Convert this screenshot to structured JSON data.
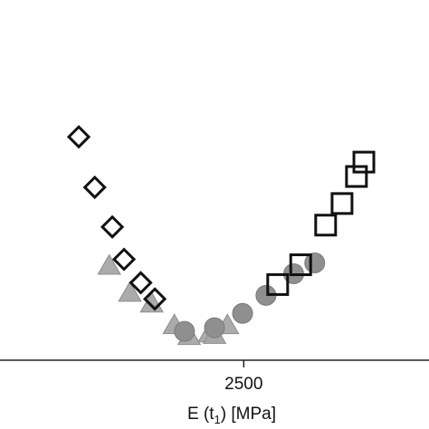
{
  "chart_data": {
    "type": "scatter",
    "xlabel_parts": {
      "main": "E (t",
      "sub": "1",
      "tail": ") [MPa]"
    },
    "x_ticks": [
      2500
    ],
    "xlim": [
      1875,
      2975
    ],
    "ylim": [
      0,
      1
    ],
    "grid": false,
    "colors": {
      "axis": "#222222",
      "open_stroke": "#111111",
      "triangle_fill": "#a6a6a6",
      "triangle_stroke": "#8c8c8c",
      "circle_fill": "#8f8f8f",
      "circle_stroke": "#7a7a7a"
    },
    "series": [
      {
        "marker": "triangle",
        "x": [
          2155,
          2208,
          2264,
          2322,
          2360,
          2412,
          2425,
          2458
        ],
        "y": [
          0.26,
          0.185,
          0.155,
          0.095,
          0.065,
          0.072,
          0.068,
          0.095
        ]
      },
      {
        "marker": "circle",
        "x": [
          2348,
          2425,
          2497,
          2557,
          2628,
          2682
        ],
        "y": [
          0.08,
          0.09,
          0.13,
          0.18,
          0.24,
          0.27
        ]
      },
      {
        "marker": "diamond",
        "x": [
          2077,
          2118,
          2163,
          2193,
          2236,
          2272
        ],
        "y": [
          0.62,
          0.48,
          0.37,
          0.28,
          0.215,
          0.17
        ]
      },
      {
        "marker": "square",
        "x": [
          2587,
          2646,
          2710,
          2752,
          2789,
          2808
        ],
        "y": [
          0.21,
          0.265,
          0.375,
          0.435,
          0.51,
          0.55
        ]
      }
    ]
  }
}
